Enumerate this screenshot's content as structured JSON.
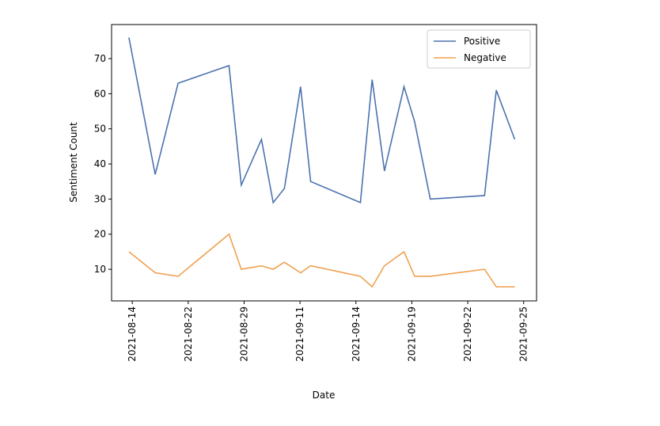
{
  "chart_data": {
    "type": "line",
    "x_label": "Date",
    "y_label": "Sentiment Count",
    "x": [
      -0.06,
      0.41,
      0.82,
      1.73,
      1.95,
      2.31,
      2.52,
      2.72,
      3.01,
      3.19,
      4.08,
      4.29,
      4.51,
      4.86,
      5.05,
      5.33,
      6.3,
      6.51,
      6.84
    ],
    "series": [
      {
        "name": "Positive",
        "color": "#4c72b0",
        "values": [
          76,
          37,
          63,
          68,
          34,
          47,
          29,
          33,
          62,
          35,
          29,
          64,
          38,
          62,
          52,
          30,
          31,
          61,
          47
        ]
      },
      {
        "name": "Negative",
        "color": "#f0a050",
        "values": [
          15,
          9,
          8,
          20,
          10,
          11,
          10,
          12,
          9,
          11,
          8,
          5,
          11,
          15,
          8,
          8,
          10,
          5,
          5
        ]
      }
    ],
    "xlim": [
      -0.37,
      7.23
    ],
    "xticks": [
      {
        "value": 0,
        "label": "2021-08-14"
      },
      {
        "value": 1,
        "label": "2021-08-22"
      },
      {
        "value": 2,
        "label": "2021-08-29"
      },
      {
        "value": 3,
        "label": "2021-09-11"
      },
      {
        "value": 4,
        "label": "2021-09-14"
      },
      {
        "value": 5,
        "label": "2021-09-19"
      },
      {
        "value": 6,
        "label": "2021-09-22"
      },
      {
        "value": 7,
        "label": "2021-09-25"
      }
    ],
    "ylim": [
      1,
      79.7
    ],
    "yticks": [
      10,
      20,
      30,
      40,
      50,
      60,
      70
    ],
    "legend": "upper right"
  }
}
